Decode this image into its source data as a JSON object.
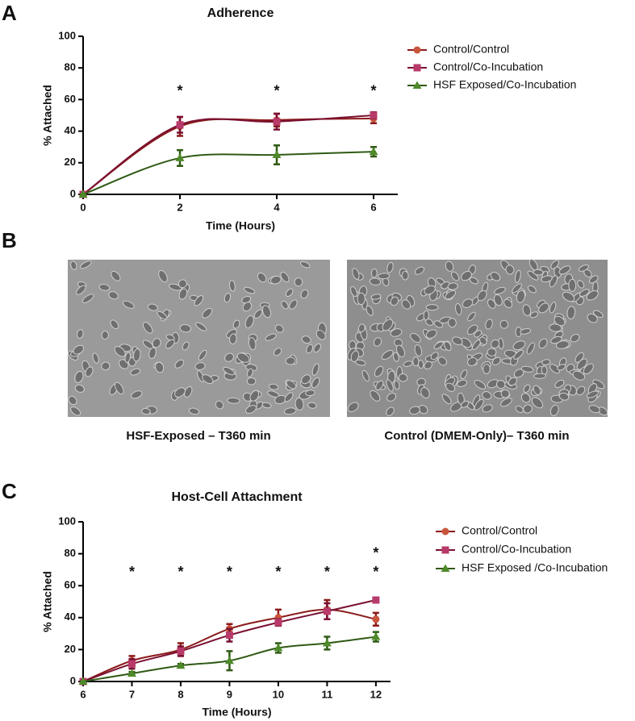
{
  "panel_labels": [
    "A",
    "B",
    "C"
  ],
  "images": [
    {
      "caption": "HSF-Exposed – T360 min"
    },
    {
      "caption": "Control (DMEM-Only)– T360 min"
    }
  ],
  "chart_data": [
    {
      "type": "line",
      "title": "Adherence",
      "x_label": "Time (Hours)",
      "y_label": "% Attached",
      "x": [
        0,
        2,
        4,
        6
      ],
      "xlim": [
        0,
        6.5
      ],
      "xticks": [
        0,
        2,
        4,
        6
      ],
      "ylim": [
        0,
        100
      ],
      "yticks": [
        0,
        20,
        40,
        60,
        80,
        100
      ],
      "legend": "right",
      "series": [
        {
          "name": "Control/Control",
          "color": "#c8553d",
          "line_color": "#8b1a1a",
          "marker": "circle",
          "values": [
            0,
            43,
            47,
            48
          ],
          "errors": [
            0,
            6,
            4,
            3
          ]
        },
        {
          "name": "Control/Co-Incubation",
          "color": "#b83a6a",
          "line_color": "#7a1030",
          "marker": "square",
          "values": [
            0,
            44,
            46,
            50
          ],
          "errors": [
            0,
            5,
            5,
            2
          ]
        },
        {
          "name": "HSF Exposed/Co-Incubation",
          "color": "#4f8a2a",
          "line_color": "#2f5a14",
          "marker": "triangle",
          "values": [
            0,
            23,
            25,
            27
          ],
          "errors": [
            0,
            5,
            6,
            3
          ]
        }
      ],
      "annotations": [
        {
          "x": 2,
          "y": 67,
          "text": "*"
        },
        {
          "x": 4,
          "y": 67,
          "text": "*"
        },
        {
          "x": 6,
          "y": 67,
          "text": "*"
        }
      ]
    },
    {
      "type": "line",
      "title": "Host-Cell Attachment",
      "x_label": "Time (Hours)",
      "y_label": "% Attached",
      "x": [
        6,
        7,
        8,
        9,
        10,
        11,
        12
      ],
      "xlim": [
        6,
        12.3
      ],
      "xticks": [
        6,
        7,
        8,
        9,
        10,
        11,
        12
      ],
      "ylim": [
        0,
        100
      ],
      "yticks": [
        0,
        20,
        40,
        60,
        80,
        100
      ],
      "legend": "right",
      "series": [
        {
          "name": "Control/Control",
          "color": "#c8553d",
          "line_color": "#8b1a1a",
          "marker": "circle",
          "values": [
            0,
            13,
            20,
            33,
            40,
            45,
            39
          ],
          "errors": [
            0,
            3,
            4,
            3,
            5,
            6,
            4
          ]
        },
        {
          "name": "Control/Co-Incubation",
          "color": "#b83a6a",
          "line_color": "#7a1030",
          "marker": "square",
          "values": [
            0,
            11,
            19,
            29,
            37,
            44,
            51
          ],
          "errors": [
            0,
            3,
            3,
            4,
            2,
            5,
            1
          ]
        },
        {
          "name": "HSF Exposed /Co-Incubation",
          "color": "#4f8a2a",
          "line_color": "#2f5a14",
          "marker": "triangle",
          "values": [
            0,
            5,
            10,
            13,
            21,
            24,
            28
          ],
          "errors": [
            0,
            1,
            1,
            6,
            3,
            4,
            3
          ]
        }
      ],
      "annotations": [
        {
          "x": 7,
          "y": 70,
          "text": "*"
        },
        {
          "x": 8,
          "y": 70,
          "text": "*"
        },
        {
          "x": 9,
          "y": 70,
          "text": "*"
        },
        {
          "x": 10,
          "y": 70,
          "text": "*"
        },
        {
          "x": 11,
          "y": 70,
          "text": "*"
        },
        {
          "x": 12,
          "y": 82,
          "text": "*"
        },
        {
          "x": 12,
          "y": 70,
          "text": "*"
        }
      ]
    }
  ]
}
